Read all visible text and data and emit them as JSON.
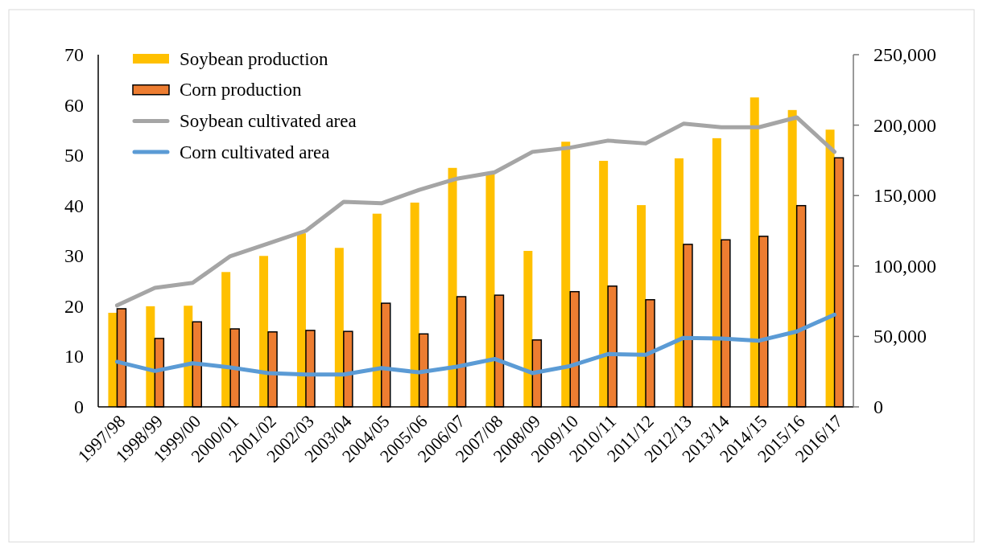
{
  "chart_data": {
    "type": "bar",
    "categories": [
      "1997/98",
      "1998/99",
      "1999/00",
      "2000/01",
      "2001/02",
      "2002/03",
      "2003/04",
      "2004/05",
      "2005/06",
      "2006/07",
      "2007/08",
      "2008/09",
      "2009/10",
      "2010/11",
      "2011/12",
      "2012/13",
      "2013/14",
      "2014/15",
      "2015/16",
      "2016/17"
    ],
    "series": [
      {
        "name": "Soybean production",
        "color": "#ffc000",
        "values": [
          18.7,
          20.0,
          20.1,
          26.8,
          30.0,
          34.5,
          31.6,
          38.4,
          40.6,
          47.5,
          46.5,
          31.0,
          52.7,
          48.9,
          40.1,
          49.4,
          53.4,
          61.5,
          59.0,
          55.1
        ]
      },
      {
        "name": "Corn production",
        "color": "#ed7d31",
        "values": [
          19.5,
          13.6,
          16.9,
          15.5,
          14.9,
          15.2,
          15.0,
          20.6,
          14.5,
          21.9,
          22.2,
          13.3,
          22.9,
          24.0,
          21.3,
          32.3,
          33.2,
          33.9,
          40.0,
          49.5
        ]
      },
      {
        "name": "Soybean cultivated area",
        "type": "line",
        "axis": "y2",
        "color": "#a5a5a5",
        "values": [
          72000,
          84500,
          88000,
          107000,
          116000,
          125000,
          145500,
          144500,
          154000,
          162000,
          166500,
          181000,
          184000,
          189000,
          187000,
          201000,
          198500,
          198500,
          205500,
          181000
        ]
      },
      {
        "name": "Corn cultivated area",
        "type": "line",
        "axis": "y2",
        "color": "#5b9bd5",
        "values": [
          32000,
          25500,
          31000,
          28000,
          24000,
          23000,
          23000,
          27500,
          24500,
          28500,
          34000,
          24000,
          29000,
          37500,
          37000,
          49000,
          48500,
          47000,
          53500,
          65500
        ]
      }
    ],
    "ylim": [
      0,
      70
    ],
    "yticks": [
      0,
      10,
      20,
      30,
      40,
      50,
      60,
      70
    ],
    "y2lim": [
      0,
      250000
    ],
    "y2ticks": [
      {
        "value": 0,
        "label": "0"
      },
      {
        "value": 50000,
        "label": "50,000"
      },
      {
        "value": 100000,
        "label": "100,000"
      },
      {
        "value": 150000,
        "label": "150,000"
      },
      {
        "value": 200000,
        "label": "200,000"
      },
      {
        "value": 250000,
        "label": "250,000"
      }
    ],
    "legend": "top left",
    "grid": false,
    "marker": "none",
    "line_style": "solid"
  }
}
